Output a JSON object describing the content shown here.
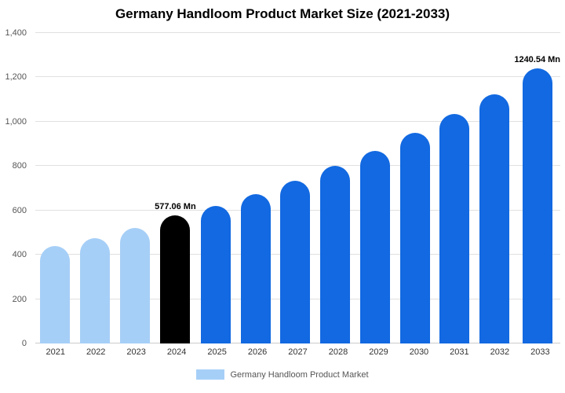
{
  "title": "Germany Handloom Product Market Size (2021-2033)",
  "legend": {
    "label": "Germany Handloom Product Market",
    "swatch_color": "#A6CFF7"
  },
  "colors": {
    "historical": "#A6CFF7",
    "base_year": "#000000",
    "forecast": "#1269E1",
    "gridline": "#e0e0e0"
  },
  "chart_data": {
    "type": "bar",
    "title": "Germany Handloom Product Market Size (2021-2033)",
    "categories": [
      "2021",
      "2022",
      "2023",
      "2024",
      "2025",
      "2026",
      "2027",
      "2028",
      "2029",
      "2030",
      "2031",
      "2032",
      "2033"
    ],
    "values": [
      440,
      475,
      520,
      577.06,
      620,
      672,
      735,
      800,
      870,
      950,
      1035,
      1125,
      1240.54
    ],
    "unit": "Mn",
    "xlabel": "",
    "ylabel": "",
    "ylim": [
      0,
      1400
    ],
    "yticks": [
      0,
      200,
      400,
      600,
      800,
      1000,
      1200,
      1400
    ],
    "ytick_labels": [
      "0",
      "200",
      "400",
      "600",
      "800",
      "1,000",
      "1,200",
      "1,400"
    ],
    "grid": true,
    "legend_position": "bottom",
    "bar_colors": [
      "#A6CFF7",
      "#A6CFF7",
      "#A6CFF7",
      "#000000",
      "#1269E1",
      "#1269E1",
      "#1269E1",
      "#1269E1",
      "#1269E1",
      "#1269E1",
      "#1269E1",
      "#1269E1",
      "#1269E1"
    ],
    "annotations": [
      {
        "index": 3,
        "text": "577.06 Mn"
      },
      {
        "index": 12,
        "text": "1240.54 Mn"
      }
    ]
  }
}
